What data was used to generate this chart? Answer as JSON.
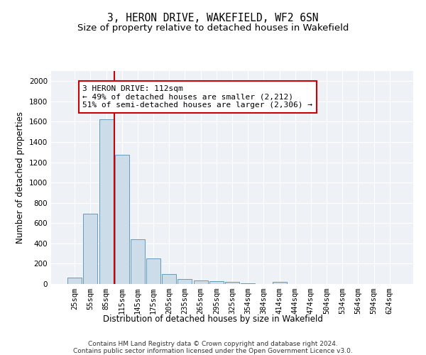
{
  "title": "3, HERON DRIVE, WAKEFIELD, WF2 6SN",
  "subtitle": "Size of property relative to detached houses in Wakefield",
  "xlabel": "Distribution of detached houses by size in Wakefield",
  "ylabel": "Number of detached properties",
  "categories": [
    "25sqm",
    "55sqm",
    "85sqm",
    "115sqm",
    "145sqm",
    "175sqm",
    "205sqm",
    "235sqm",
    "265sqm",
    "295sqm",
    "325sqm",
    "354sqm",
    "384sqm",
    "414sqm",
    "444sqm",
    "474sqm",
    "504sqm",
    "534sqm",
    "564sqm",
    "594sqm",
    "624sqm"
  ],
  "values": [
    65,
    690,
    1625,
    1275,
    440,
    255,
    95,
    50,
    35,
    25,
    20,
    10,
    0,
    20,
    0,
    0,
    0,
    0,
    0,
    0,
    0
  ],
  "bar_color": "#ccdce8",
  "bar_edge_color": "#6699bb",
  "line_color": "#cc0000",
  "annotation_text": "3 HERON DRIVE: 112sqm\n← 49% of detached houses are smaller (2,212)\n51% of semi-detached houses are larger (2,306) →",
  "annotation_box_color": "#ffffff",
  "annotation_box_edge": "#cc0000",
  "ylim": [
    0,
    2100
  ],
  "yticks": [
    0,
    200,
    400,
    600,
    800,
    1000,
    1200,
    1400,
    1600,
    1800,
    2000
  ],
  "footer_line1": "Contains HM Land Registry data © Crown copyright and database right 2024.",
  "footer_line2": "Contains public sector information licensed under the Open Government Licence v3.0.",
  "background_color": "#eef2f7",
  "title_fontsize": 10.5,
  "subtitle_fontsize": 9.5,
  "axis_label_fontsize": 8.5,
  "tick_fontsize": 7.5,
  "annotation_fontsize": 8,
  "footer_fontsize": 6.5
}
